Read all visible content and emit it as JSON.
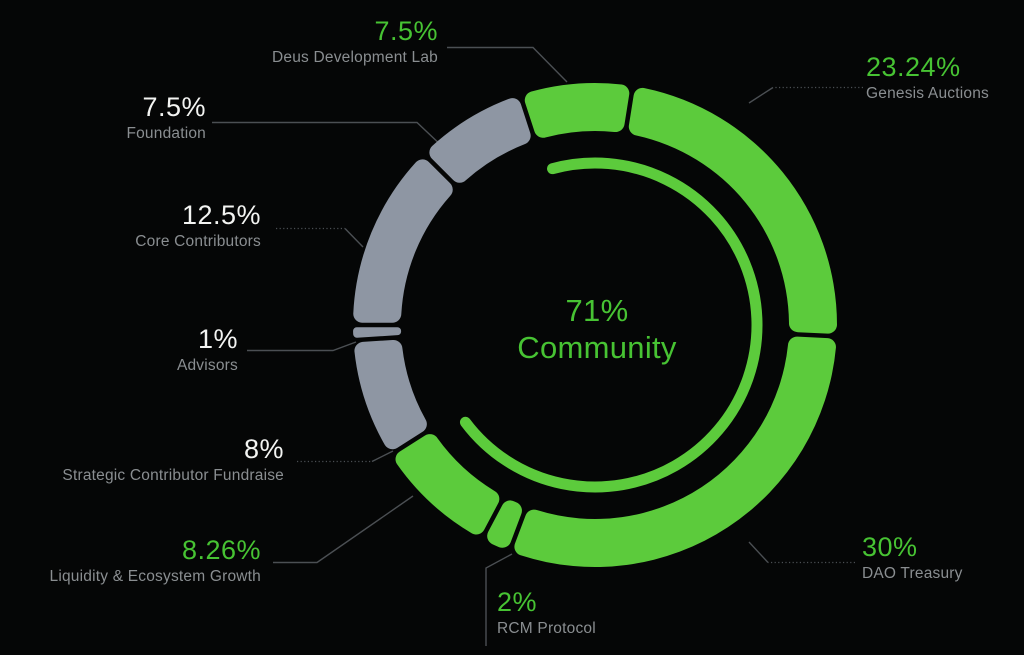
{
  "chart_data": {
    "type": "pie",
    "variant": "segmented-donut",
    "title_center": {
      "value": "71%",
      "label": "Community"
    },
    "total": 100,
    "start_angle_deg": -18,
    "legend_position": "around-chart",
    "grid": false,
    "colors": {
      "community_green": "#5CCB3C",
      "non_community_gray": "#8E96A3",
      "value_text_white": "#F3F4F2",
      "value_text_green": "#47C333",
      "label_text_gray": "#8A8E91",
      "leader_line": "#4B4F53",
      "background": "#050606"
    },
    "segments": [
      {
        "id": "deus",
        "label": "Deus Development Lab",
        "value": 7.5,
        "display": "7.5%",
        "color_group": "green",
        "label_side": "top"
      },
      {
        "id": "genesis",
        "label": "Genesis Auctions",
        "value": 23.24,
        "display": "23.24%",
        "color_group": "green",
        "label_side": "right"
      },
      {
        "id": "dao",
        "label": "DAO Treasury",
        "value": 30,
        "display": "30%",
        "color_group": "green",
        "label_side": "right"
      },
      {
        "id": "rcm",
        "label": "RCM Protocol",
        "value": 2,
        "display": "2%",
        "color_group": "green",
        "label_side": "bottom"
      },
      {
        "id": "liquidity",
        "label": "Liquidity & Ecosystem Growth",
        "value": 8.26,
        "display": "8.26%",
        "color_group": "green",
        "label_side": "left"
      },
      {
        "id": "strategic",
        "label": "Strategic Contributor Fundraise",
        "value": 8,
        "display": "8%",
        "color_group": "gray",
        "label_side": "left"
      },
      {
        "id": "advisors",
        "label": "Advisors",
        "value": 1,
        "display": "1%",
        "color_group": "gray",
        "label_side": "left"
      },
      {
        "id": "core",
        "label": "Core Contributors",
        "value": 12.5,
        "display": "12.5%",
        "color_group": "gray",
        "label_side": "left"
      },
      {
        "id": "foundation",
        "label": "Foundation",
        "value": 7.5,
        "display": "7.5%",
        "color_group": "gray",
        "label_side": "left"
      }
    ],
    "inner_arc": {
      "represents": "Community share",
      "percent": 71
    }
  }
}
